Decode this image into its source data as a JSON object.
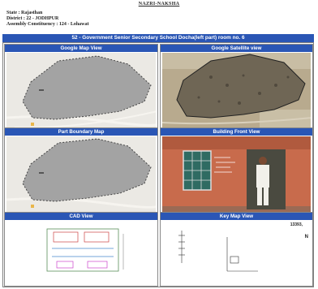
{
  "header": {
    "title": "NAZRI-NAKSHA",
    "state": "State : Rajasthan",
    "district": "District : 22 - JODHPUR",
    "constituency": "Assembly Constituency : 124 - Lohawat"
  },
  "banner": "52 - Government Senior Secondary School Docha(left part) room no. 6",
  "panels": {
    "map_view": "Google Map View",
    "satellite_view": "Google Satellite view",
    "boundary_map": "Part Boundary Map",
    "building_view": "Building Front View",
    "cad_view": "CAD View",
    "key_map": "Key Map View"
  },
  "key_map": {
    "number": "13393,",
    "north": "N"
  },
  "colors": {
    "caption_blue": "#2a56b5",
    "map_polygon": "#a3a3a3",
    "map_outline": "#444444",
    "map_bg": "#e8e6e1"
  }
}
